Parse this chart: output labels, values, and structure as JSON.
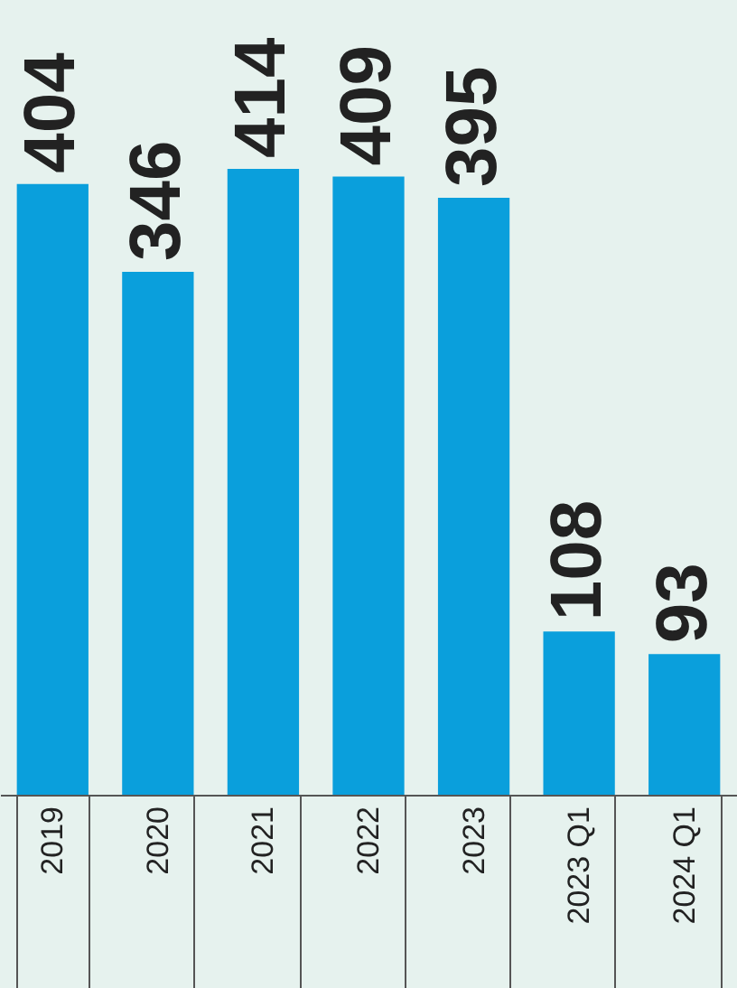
{
  "chart_data": {
    "type": "bar",
    "categories": [
      "2019",
      "2020",
      "2021",
      "2022",
      "2023",
      "2023 Q1",
      "2024 Q1"
    ],
    "values": [
      404,
      346,
      414,
      409,
      395,
      108,
      93
    ],
    "color": "#0a9fdc",
    "data_labels": true
  }
}
